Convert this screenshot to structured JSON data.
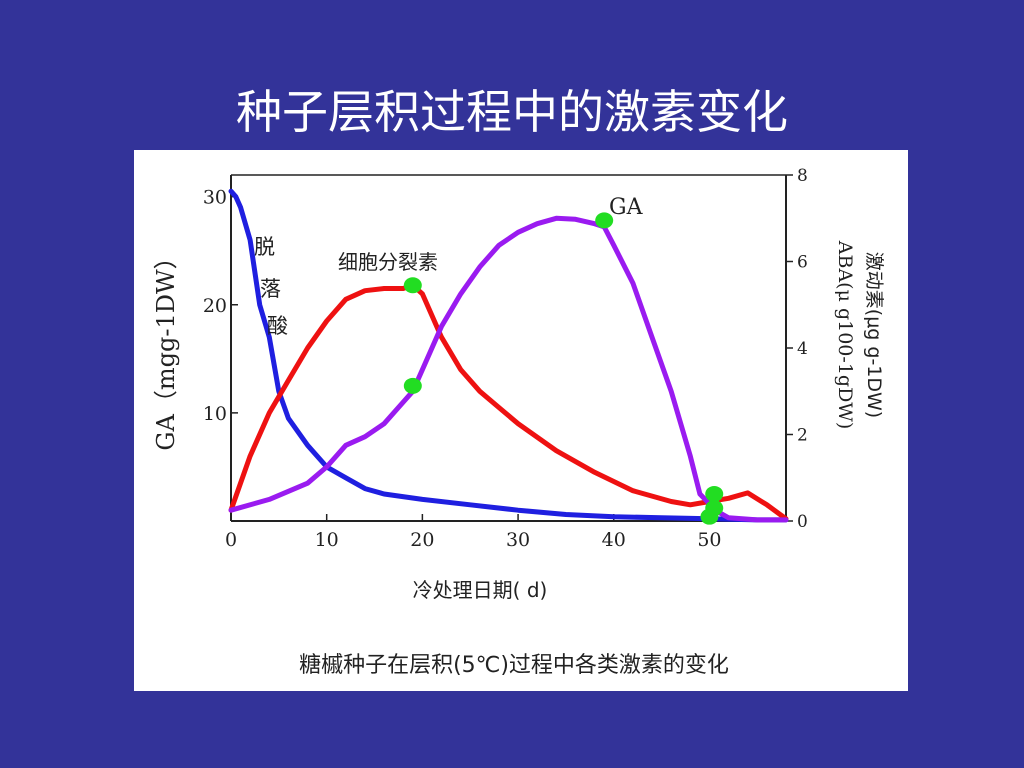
{
  "slide": {
    "title": "种子层积过程中的激素变化",
    "background": "#333399"
  },
  "chart_data": {
    "type": "line",
    "caption": "糖槭种子在层积(5℃)过程中各类激素的变化",
    "xlabel": "冷处理日期( d)",
    "ylabel_left": "GA（mgg-1DW）",
    "ylabel_right_1": "ABA(μ g100-1gDW)",
    "ylabel_right_2": "激动素(μg g-1DW)",
    "xlim": [
      0,
      58
    ],
    "ylim_left": [
      0,
      32
    ],
    "ylim_right": [
      0,
      8
    ],
    "x_ticks": [
      0,
      10,
      20,
      30,
      40,
      50
    ],
    "y_ticks_left": [
      10,
      20,
      30
    ],
    "y_ticks_right": [
      0,
      2,
      4,
      6,
      8
    ],
    "series": [
      {
        "name": "脱落酸",
        "color": "#1f1fe0",
        "points": [
          [
            0,
            30.5
          ],
          [
            0.5,
            30
          ],
          [
            1,
            29
          ],
          [
            2,
            26
          ],
          [
            3,
            20
          ],
          [
            4,
            17
          ],
          [
            5,
            12
          ],
          [
            6,
            9.5
          ],
          [
            8,
            7
          ],
          [
            10,
            5
          ],
          [
            12,
            4
          ],
          [
            14,
            3
          ],
          [
            16,
            2.5
          ],
          [
            20,
            2
          ],
          [
            25,
            1.5
          ],
          [
            30,
            1
          ],
          [
            35,
            0.6
          ],
          [
            40,
            0.4
          ],
          [
            45,
            0.3
          ],
          [
            50,
            0.2
          ],
          [
            55,
            0.1
          ],
          [
            58,
            0.1
          ]
        ]
      },
      {
        "name": "细胞分裂素",
        "color": "#ee1111",
        "points": [
          [
            0,
            1
          ],
          [
            2,
            6
          ],
          [
            4,
            10
          ],
          [
            6,
            13
          ],
          [
            8,
            16
          ],
          [
            10,
            18.5
          ],
          [
            12,
            20.5
          ],
          [
            14,
            21.3
          ],
          [
            16,
            21.5
          ],
          [
            18,
            21.5
          ],
          [
            19,
            21.8
          ],
          [
            20,
            21
          ],
          [
            22,
            17
          ],
          [
            24,
            14
          ],
          [
            26,
            12
          ],
          [
            28,
            10.5
          ],
          [
            30,
            9
          ],
          [
            34,
            6.5
          ],
          [
            38,
            4.5
          ],
          [
            42,
            2.8
          ],
          [
            46,
            1.8
          ],
          [
            48,
            1.5
          ],
          [
            50,
            1.8
          ],
          [
            52,
            2.1
          ],
          [
            54,
            2.6
          ],
          [
            56,
            1.5
          ],
          [
            58,
            0.2
          ]
        ]
      },
      {
        "name": "GA",
        "color": "#9a1bf0",
        "points": [
          [
            0,
            1
          ],
          [
            4,
            2
          ],
          [
            8,
            3.5
          ],
          [
            10,
            5
          ],
          [
            12,
            7
          ],
          [
            14,
            7.8
          ],
          [
            16,
            9
          ],
          [
            18,
            11
          ],
          [
            19,
            12
          ],
          [
            20,
            14
          ],
          [
            22,
            18
          ],
          [
            24,
            21
          ],
          [
            26,
            23.5
          ],
          [
            28,
            25.5
          ],
          [
            30,
            26.7
          ],
          [
            32,
            27.5
          ],
          [
            34,
            28
          ],
          [
            36,
            27.9
          ],
          [
            38,
            27.5
          ],
          [
            39,
            27.2
          ],
          [
            40,
            25.5
          ],
          [
            42,
            22
          ],
          [
            44,
            17
          ],
          [
            46,
            12
          ],
          [
            48,
            6
          ],
          [
            49,
            2.5
          ],
          [
            50,
            1.6
          ],
          [
            51,
            0.8
          ],
          [
            52,
            0.3
          ],
          [
            55,
            0.1
          ],
          [
            58,
            0.1
          ]
        ]
      }
    ],
    "markers": [
      {
        "x": 19,
        "y": 21.8
      },
      {
        "x": 19,
        "y": 12.5
      },
      {
        "x": 39,
        "y": 27.8
      },
      {
        "x": 50.5,
        "y": 2.5
      },
      {
        "x": 50.5,
        "y": 1.2
      },
      {
        "x": 50,
        "y": 0.4
      }
    ],
    "marker_color": "#22dd22",
    "annotations": [
      {
        "text": "脱",
        "series": "脱落酸"
      },
      {
        "text": "落",
        "series": "脱落酸"
      },
      {
        "text": "酸",
        "series": "脱落酸"
      },
      {
        "text": "细胞分裂素",
        "series": "细胞分裂素"
      },
      {
        "text": "GA",
        "series": "GA"
      }
    ]
  }
}
